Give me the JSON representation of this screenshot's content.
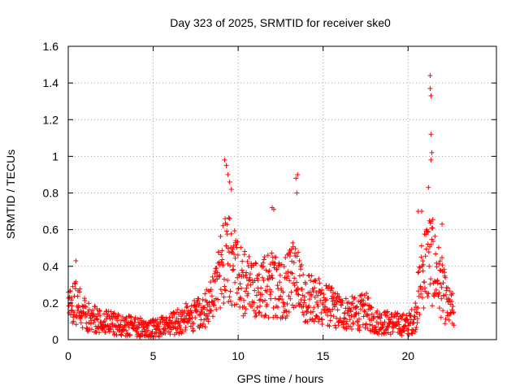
{
  "chart_data": {
    "type": "scatter",
    "title": "Day 323 of 2025, SRMTID for receiver ske0",
    "xlabel": "GPS time / hours",
    "ylabel": "SRMTID / TECUs",
    "xlim": [
      0,
      25.2
    ],
    "ylim": [
      0,
      1.6
    ],
    "xticks": [
      0,
      5,
      10,
      15,
      20
    ],
    "xtick_labels": [
      "0",
      "5",
      "10",
      "15",
      "20"
    ],
    "yticks": [
      0,
      0.2,
      0.4,
      0.6,
      0.8,
      1.0,
      1.2,
      1.4,
      1.6
    ],
    "ytick_labels": [
      "0",
      "0.2",
      "0.4",
      "0.6",
      "0.8",
      "1",
      "1.2",
      "1.4",
      "1.6"
    ],
    "grid": true,
    "marker": "+",
    "color": "#ff0000",
    "series": [
      {
        "name": "SRMTID",
        "envelope": {
          "x": [
            0,
            0.3,
            0.5,
            1,
            1.5,
            2,
            3,
            4,
            5,
            6,
            7,
            8,
            8.5,
            9,
            9.3,
            9.6,
            10,
            10.5,
            11,
            11.5,
            12,
            12.5,
            13,
            13.4,
            13.8,
            14.5,
            15,
            16,
            17,
            17.5,
            18,
            19,
            20,
            20.4,
            20.8,
            21,
            21.3,
            21.6,
            22,
            22.3,
            22.7
          ],
          "y": [
            0.16,
            0.2,
            0.22,
            0.13,
            0.11,
            0.1,
            0.08,
            0.07,
            0.06,
            0.08,
            0.12,
            0.15,
            0.22,
            0.38,
            0.55,
            0.42,
            0.33,
            0.3,
            0.27,
            0.29,
            0.3,
            0.27,
            0.3,
            0.38,
            0.24,
            0.22,
            0.2,
            0.15,
            0.14,
            0.16,
            0.1,
            0.09,
            0.08,
            0.12,
            0.35,
            0.42,
            0.45,
            0.38,
            0.28,
            0.18,
            0.15
          ]
        },
        "outliers": [
          [
            0.45,
            0.43
          ],
          [
            9.2,
            0.98
          ],
          [
            9.3,
            0.95
          ],
          [
            9.4,
            0.9
          ],
          [
            9.5,
            0.86
          ],
          [
            9.6,
            0.82
          ],
          [
            12.0,
            0.72
          ],
          [
            12.1,
            0.71
          ],
          [
            13.4,
            0.88
          ],
          [
            13.5,
            0.9
          ],
          [
            13.45,
            0.8
          ],
          [
            21.3,
            1.44
          ],
          [
            21.3,
            1.37
          ],
          [
            21.35,
            1.33
          ],
          [
            21.35,
            1.12
          ],
          [
            21.4,
            1.02
          ],
          [
            21.35,
            0.98
          ],
          [
            21.2,
            0.83
          ],
          [
            20.6,
            0.7
          ],
          [
            20.8,
            0.7
          ],
          [
            22.0,
            0.63
          ]
        ]
      }
    ]
  }
}
